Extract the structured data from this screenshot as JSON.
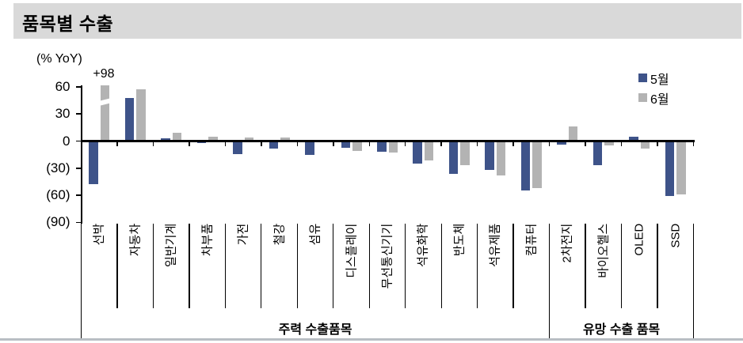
{
  "header": {
    "title": "품목별 수출"
  },
  "chart": {
    "unit_label": "(% YoY)",
    "clip_annotation": "+98",
    "legend": [
      {
        "label": "5월"
      },
      {
        "label": "6월"
      }
    ],
    "colors": {
      "may": "#3E5389",
      "june": "#B3B3B3",
      "axis": "#000000"
    },
    "y_tick_labels": [
      "60",
      "30",
      "0",
      "(30)",
      "(60)",
      "(90)"
    ],
    "y_tick_values": [
      60,
      30,
      0,
      -30,
      -60,
      -90
    ]
  },
  "chart_data": {
    "type": "bar",
    "title": "품목별 수출",
    "ylabel": "(% YoY)",
    "ylim": [
      -90,
      60
    ],
    "grid": false,
    "legend_position": "top-right",
    "negative_label_style": "parentheses",
    "categories": [
      "선박",
      "자동차",
      "일반기계",
      "차부품",
      "가전",
      "철강",
      "섬유",
      "디스플레이",
      "무선통신기기",
      "석유화학",
      "반도체",
      "석유제품",
      "컴퓨터",
      "2차전지",
      "바이오헬스",
      "OLED",
      "SSD"
    ],
    "series": [
      {
        "name": "5월",
        "values": [
          -48,
          48,
          3,
          -2,
          -14,
          -8,
          -15,
          -7,
          -12,
          -25,
          -36,
          -32,
          -55,
          -4,
          -27,
          5,
          -61
        ]
      },
      {
        "name": "6월",
        "values": [
          98,
          57,
          9,
          5,
          4,
          4,
          0,
          -11,
          -13,
          -21,
          -27,
          -38,
          -52,
          16,
          -5,
          -8,
          -59
        ]
      }
    ],
    "annotations": [
      {
        "text": "+98",
        "target": "선박 6월",
        "note": "bar clipped at axis top with break mark"
      }
    ],
    "groups": [
      {
        "label": "주력 수출품목",
        "categories_span": [
          0,
          12
        ]
      },
      {
        "label": "유망 수출 품목",
        "categories_span": [
          13,
          16
        ]
      }
    ]
  }
}
